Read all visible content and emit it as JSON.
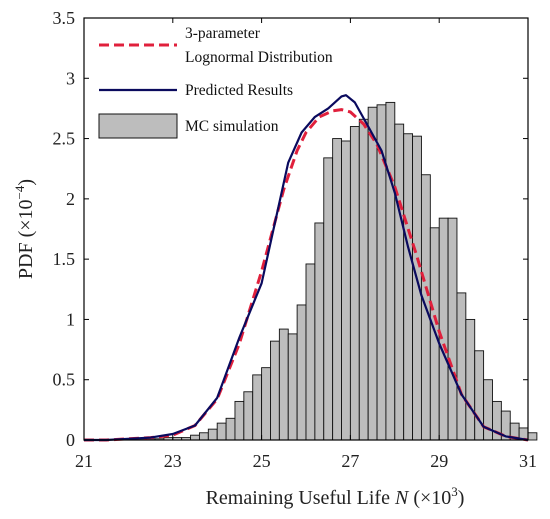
{
  "chart_data": {
    "type": "histogram",
    "xlabel": {
      "main": "Remaining Useful Life ",
      "var": "N",
      "unit": " (×10",
      "exp": "3",
      "close": ")"
    },
    "ylabel": {
      "main": "PDF (×10",
      "exp": "−4",
      "close": ")"
    },
    "xlim": [
      21,
      31
    ],
    "ylim": [
      0,
      3.5
    ],
    "xticks": [
      "21",
      "23",
      "25",
      "27",
      "29",
      "31"
    ],
    "yticks": [
      "0",
      "0.5",
      "1",
      "1.5",
      "2",
      "2.5",
      "3",
      "3.5"
    ],
    "legend": {
      "position": "top-left",
      "entries": [
        {
          "label_lines": [
            "3-parameter",
            "Lognormal Distribution"
          ],
          "style": "dashed-line",
          "color": "#e0203c"
        },
        {
          "label_lines": [
            "Predicted Results"
          ],
          "style": "solid-line",
          "color": "#0a0a5e"
        },
        {
          "label_lines": [
            "MC simulation"
          ],
          "style": "bar",
          "color": "#bdbdbd"
        }
      ]
    },
    "histogram": {
      "name": "MC simulation",
      "bin_start": 21.8,
      "bin_width": 0.2,
      "values": [
        0.01,
        0.01,
        0.01,
        0.01,
        0.01,
        0.02,
        0.02,
        0.02,
        0.04,
        0.06,
        0.09,
        0.14,
        0.18,
        0.32,
        0.4,
        0.54,
        0.6,
        0.82,
        0.92,
        0.88,
        1.12,
        1.46,
        1.8,
        2.34,
        2.5,
        2.48,
        2.6,
        2.66,
        2.76,
        2.78,
        2.8,
        2.62,
        2.54,
        2.52,
        2.2,
        1.76,
        1.84,
        1.84,
        1.22,
        1.0,
        0.74,
        0.5,
        0.32,
        0.24,
        0.14,
        0.1,
        0.06
      ]
    },
    "series": [
      {
        "name": "3-parameter Lognormal Distribution",
        "color": "#e0203c",
        "style": "dashed",
        "x": [
          21.0,
          21.5,
          22.0,
          22.5,
          23.0,
          23.5,
          24.0,
          24.5,
          25.0,
          25.5,
          25.8,
          26.0,
          26.3,
          26.6,
          26.8,
          27.0,
          27.3,
          27.6,
          28.0,
          28.5,
          29.0,
          29.5,
          30.0,
          30.5,
          31.0
        ],
        "y": [
          0.0,
          0.0,
          0.01,
          0.02,
          0.04,
          0.12,
          0.34,
          0.8,
          1.4,
          2.08,
          2.4,
          2.55,
          2.68,
          2.73,
          2.74,
          2.72,
          2.62,
          2.45,
          2.1,
          1.52,
          0.9,
          0.38,
          0.11,
          0.03,
          0.0
        ]
      },
      {
        "name": "Predicted Results",
        "color": "#0a0a5e",
        "style": "solid",
        "x": [
          21.0,
          21.5,
          22.0,
          22.5,
          23.0,
          23.5,
          24.0,
          24.5,
          25.0,
          25.3,
          25.6,
          25.9,
          26.2,
          26.5,
          26.8,
          26.9,
          27.1,
          27.4,
          27.7,
          28.0,
          28.3,
          28.6,
          29.0,
          29.5,
          30.0,
          30.5,
          31.0
        ],
        "y": [
          0.0,
          0.0,
          0.01,
          0.02,
          0.05,
          0.12,
          0.35,
          0.85,
          1.3,
          1.8,
          2.3,
          2.55,
          2.68,
          2.75,
          2.85,
          2.86,
          2.8,
          2.6,
          2.4,
          2.05,
          1.6,
          1.2,
          0.8,
          0.38,
          0.11,
          0.03,
          0.0
        ]
      }
    ]
  }
}
